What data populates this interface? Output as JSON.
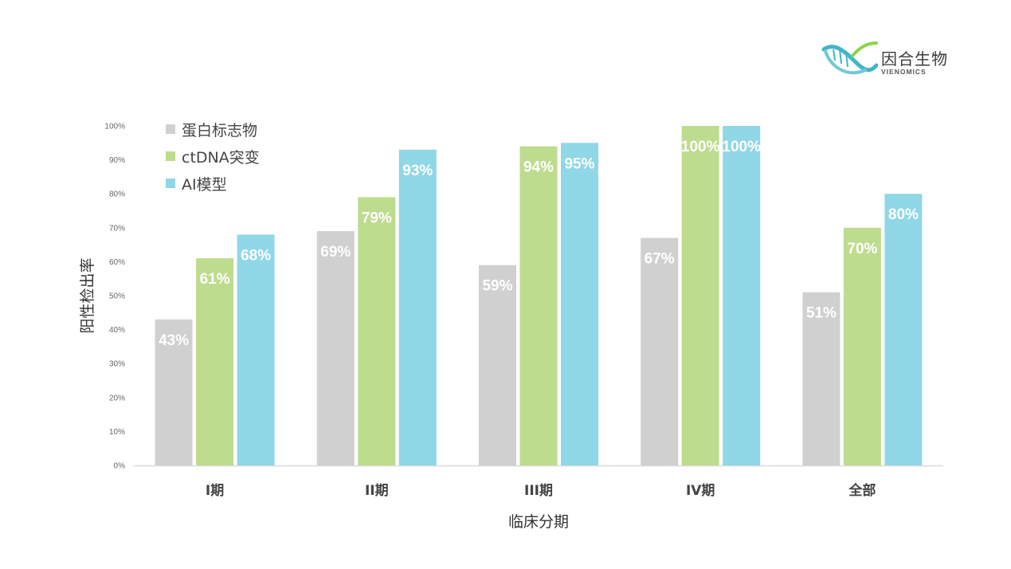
{
  "logo": {
    "name": "因合生物",
    "sub": "VIENOMICS"
  },
  "colors": {
    "protein": "#d0d0d0",
    "ctdna": "#bedc8e",
    "ai": "#90d7e7",
    "axis": "#d9d9d9",
    "tick": "#666666",
    "xtick": "#444444"
  },
  "chart_data": {
    "type": "bar",
    "categories": [
      "I期",
      "II期",
      "III期",
      "IV期",
      "全部"
    ],
    "series": [
      {
        "name": "蛋白标志物",
        "values": [
          43,
          69,
          59,
          67,
          51
        ],
        "labels": [
          "43%",
          "69%",
          "59%",
          "67%",
          "51%"
        ],
        "color": "#d0d0d0"
      },
      {
        "name": "ctDNA突变",
        "values": [
          61,
          79,
          94,
          100,
          70
        ],
        "labels": [
          "61%",
          "79%",
          "94%",
          "100%",
          "70%"
        ],
        "color": "#bedc8e"
      },
      {
        "name": "AI模型",
        "values": [
          68,
          93,
          95,
          100,
          80
        ],
        "labels": [
          "68%",
          "93%",
          "95%",
          "100%",
          "80%"
        ],
        "color": "#90d7e7"
      }
    ],
    "yticks": [
      "0%",
      "10%",
      "20%",
      "30%",
      "40%",
      "50%",
      "60%",
      "70%",
      "80%",
      "90%",
      "100%"
    ],
    "ylim": [
      0,
      100
    ],
    "xlabel": "临床分期",
    "ylabel": "阳性检出率",
    "legend": "top-left",
    "grid": false
  }
}
